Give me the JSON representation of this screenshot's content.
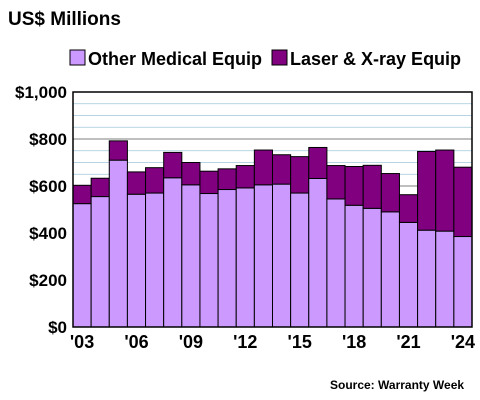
{
  "chart_data": {
    "type": "bar",
    "stacked": true,
    "title": "US$ Millions",
    "source": "Source: Warranty Week",
    "xlabel": "",
    "ylabel": "",
    "ylim": [
      0,
      1000
    ],
    "y_ticks": [
      "$0",
      "$200",
      "$400",
      "$600",
      "$800",
      "$1,000"
    ],
    "y_tick_values": [
      0,
      200,
      400,
      600,
      800,
      1000
    ],
    "grid": true,
    "legend_position": "top",
    "categories": [
      "2003",
      "2004",
      "2005",
      "2006",
      "2007",
      "2008",
      "2009",
      "2010",
      "2011",
      "2012",
      "2013",
      "2014",
      "2015",
      "2016",
      "2017",
      "2018",
      "2019",
      "2020",
      "2021",
      "2022",
      "2023",
      "2024"
    ],
    "x_tick_labels": [
      {
        "index": 0,
        "label": "'03"
      },
      {
        "index": 3,
        "label": "'06"
      },
      {
        "index": 6,
        "label": "'09"
      },
      {
        "index": 9,
        "label": "'12"
      },
      {
        "index": 12,
        "label": "'15"
      },
      {
        "index": 15,
        "label": "'18"
      },
      {
        "index": 18,
        "label": "'21"
      },
      {
        "index": 21,
        "label": "'24"
      }
    ],
    "series": [
      {
        "name": "Other Medical Equip",
        "color": "#cc99ff",
        "values": [
          525,
          555,
          710,
          565,
          570,
          635,
          605,
          568,
          585,
          592,
          605,
          608,
          570,
          632,
          545,
          518,
          505,
          490,
          445,
          412,
          408,
          385
        ]
      },
      {
        "name": "Laser & X-ray Equip",
        "color": "#800080",
        "values": [
          78,
          78,
          82,
          95,
          108,
          108,
          95,
          95,
          88,
          95,
          148,
          125,
          155,
          132,
          142,
          165,
          183,
          163,
          118,
          335,
          345,
          295
        ]
      }
    ]
  }
}
